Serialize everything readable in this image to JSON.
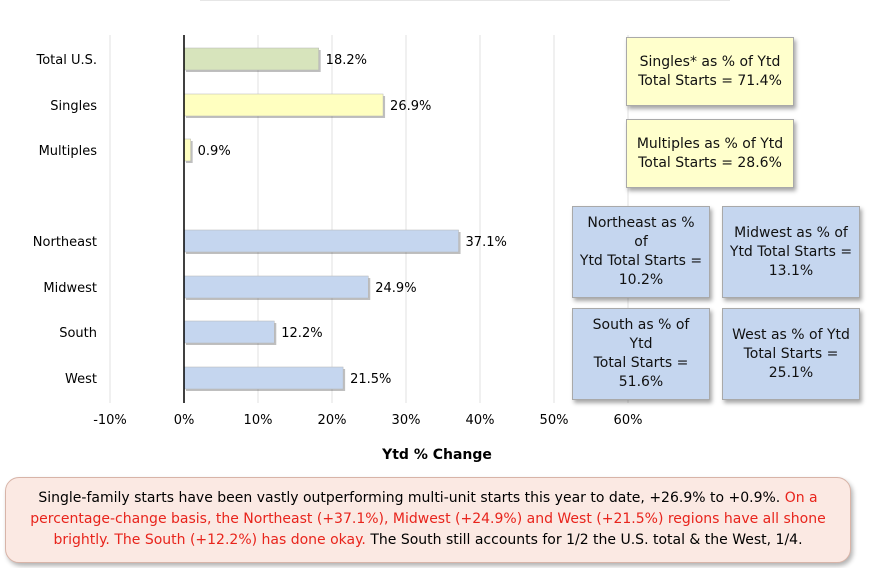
{
  "chart_data": {
    "type": "bar",
    "orientation": "horizontal",
    "categories": [
      "Total U.S.",
      "Singles",
      "Multiples",
      "Northeast",
      "Midwest",
      "South",
      "West"
    ],
    "values": [
      18.2,
      26.9,
      0.9,
      37.1,
      24.9,
      12.2,
      21.5
    ],
    "value_labels": [
      "18.2%",
      "26.9%",
      "0.9%",
      "37.1%",
      "24.9%",
      "12.2%",
      "21.5%"
    ],
    "bar_colors": [
      "#d7e4bc",
      "#ffffc0",
      "#ffffc0",
      "#c5d6ef",
      "#c5d6ef",
      "#c5d6ef",
      "#c5d6ef"
    ],
    "xlabel": "Ytd % Change",
    "ylabel": "",
    "xlim": [
      -10,
      60
    ],
    "xticks": [
      -10,
      0,
      10,
      20,
      30,
      40,
      50,
      60
    ],
    "xtick_labels": [
      "-10%",
      "0%",
      "10%",
      "20%",
      "30%",
      "40%",
      "50%",
      "60%"
    ],
    "grid": "vertical",
    "grid_color": "#e0e0e0"
  },
  "callouts": {
    "singles": [
      "Singles* as % of Ytd",
      "Total Starts = 71.4%"
    ],
    "multiples": [
      "Multiples as % of Ytd",
      "Total Starts = 28.6%"
    ],
    "northeast": [
      "Northeast as % of",
      "Ytd Total Starts =",
      "10.2%"
    ],
    "midwest": [
      "Midwest as % of",
      "Ytd Total Starts =",
      "13.1%"
    ],
    "south": [
      "South as % of Ytd",
      "Total Starts =",
      "51.6%"
    ],
    "west": [
      "West as % of Ytd",
      "Total Starts =",
      "25.1%"
    ]
  },
  "caption": {
    "part1": "Single-family starts have been vastly outperforming multi-unit starts this year to date, +26.9% to +0.9%.",
    "part2": "On a percentage-change basis, the Northeast (+37.1%), Midwest (+24.9%) and West (+21.5%) regions have all shone brightly. The South (+12.2%) has done okay.",
    "part3": "The South still accounts for 1/2 the U.S. total & the West, 1/4."
  },
  "colors": {
    "caption_red": "#e8241c",
    "callout_yellow": "#ffffcc",
    "callout_blue": "#c5d6ef"
  }
}
